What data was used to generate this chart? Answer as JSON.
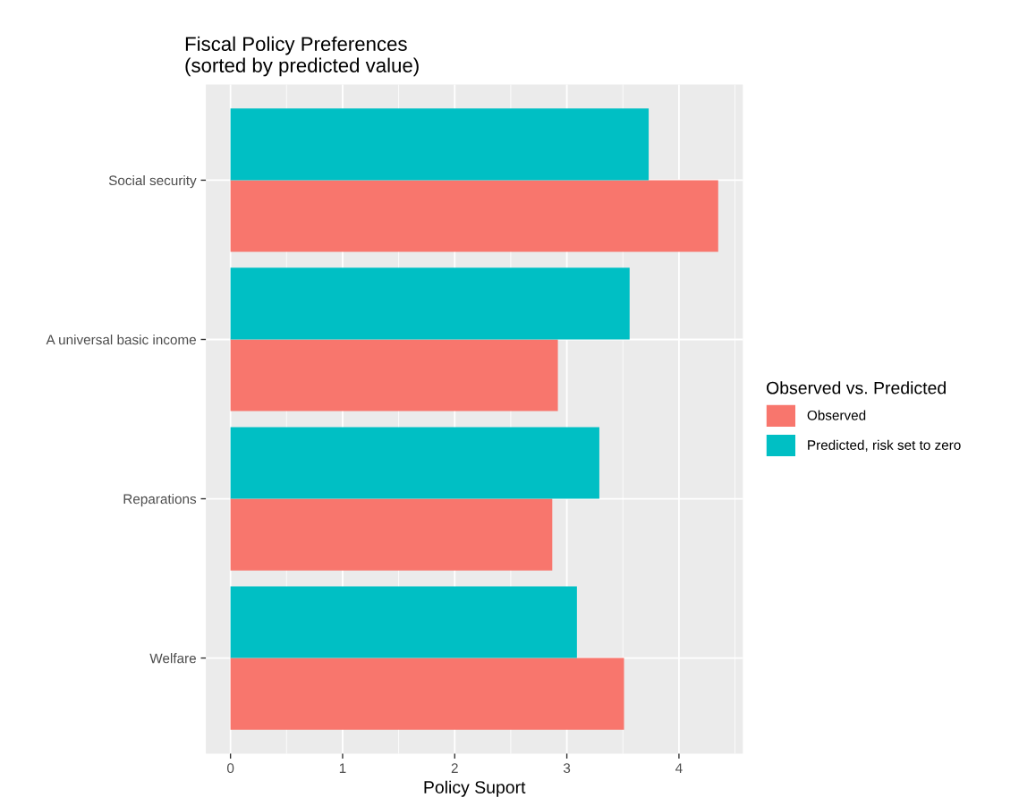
{
  "chart_data": {
    "type": "bar",
    "orientation": "horizontal",
    "title": "Fiscal Policy Preferences\n(sorted by predicted value)",
    "xlabel": "Policy Suport",
    "legend_title": "Observed vs. Predicted",
    "legend": "right",
    "categories": [
      "Social security",
      "A universal basic income",
      "Reparations",
      "Welfare"
    ],
    "series": [
      {
        "name": "Observed",
        "color": "#f8766d",
        "values": [
          4.35,
          2.92,
          2.87,
          3.51
        ]
      },
      {
        "name": "Predicted, risk set to zero",
        "color": "#00bfc4",
        "values": [
          3.73,
          3.56,
          3.29,
          3.09
        ]
      }
    ],
    "xlim": [
      -0.22,
      4.57
    ],
    "xticks": [
      0,
      1,
      2,
      3,
      4
    ],
    "grid": true
  }
}
